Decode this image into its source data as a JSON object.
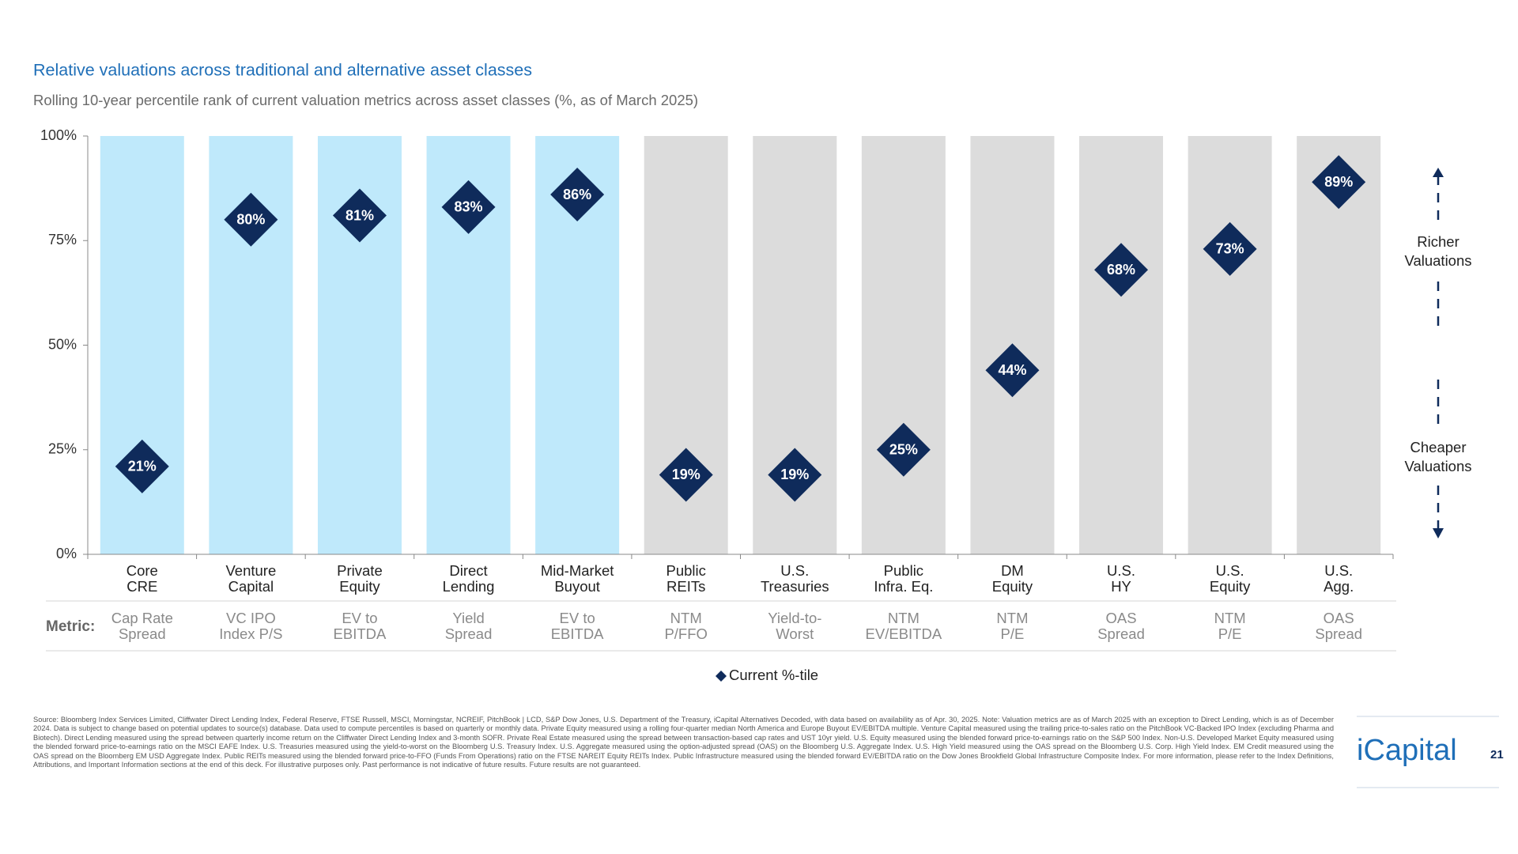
{
  "chart_data": {
    "type": "scatter",
    "title": "Relative valuations across traditional and alternative asset classes",
    "subtitle": "Rolling 10-year percentile rank of current valuation metrics across asset classes (%, as of March 2025)",
    "categories": [
      [
        "Core",
        "CRE"
      ],
      [
        "Venture",
        "Capital"
      ],
      [
        "Private",
        "Equity"
      ],
      [
        "Direct",
        "Lending"
      ],
      [
        "Mid-Market",
        "Buyout"
      ],
      [
        "Public",
        "REITs"
      ],
      [
        "U.S.",
        "Treasuries"
      ],
      [
        "Public",
        "Infra. Eq."
      ],
      [
        "DM",
        "Equity"
      ],
      [
        "U.S.",
        "HY"
      ],
      [
        "U.S.",
        "Equity"
      ],
      [
        "U.S.",
        "Agg."
      ]
    ],
    "category_colors": [
      "#bfe9fb",
      "#bfe9fb",
      "#bfe9fb",
      "#bfe9fb",
      "#bfe9fb",
      "#dcdcdc",
      "#dcdcdc",
      "#dcdcdc",
      "#dcdcdc",
      "#dcdcdc",
      "#dcdcdc",
      "#dcdcdc"
    ],
    "metric_label": "Metric:",
    "metrics": [
      [
        "Cap Rate",
        "Spread"
      ],
      [
        "VC IPO",
        "Index P/S"
      ],
      [
        "EV to",
        "EBITDA"
      ],
      [
        "Yield",
        "Spread"
      ],
      [
        "EV to",
        "EBITDA"
      ],
      [
        "NTM",
        "P/FFO"
      ],
      [
        "Yield-to-",
        "Worst"
      ],
      [
        "NTM",
        "EV/EBITDA"
      ],
      [
        "NTM",
        "P/E"
      ],
      [
        "OAS",
        "Spread"
      ],
      [
        "NTM",
        "P/E"
      ],
      [
        "OAS",
        "Spread"
      ]
    ],
    "series": [
      {
        "name": "Current %-tile",
        "color": "#0f2b5b",
        "values": [
          21,
          80,
          81,
          83,
          86,
          19,
          19,
          25,
          44,
          68,
          73,
          89
        ],
        "value_labels": [
          "21%",
          "80%",
          "81%",
          "83%",
          "86%",
          "19%",
          "19%",
          "25%",
          "44%",
          "68%",
          "73%",
          "89%"
        ]
      }
    ],
    "ylim": [
      0,
      100
    ],
    "yticks": [
      {
        "value": 0,
        "label": "0%"
      },
      {
        "value": 25,
        "label": "25%"
      },
      {
        "value": 50,
        "label": "50%"
      },
      {
        "value": 75,
        "label": "75%"
      },
      {
        "value": 100,
        "label": "100%"
      }
    ],
    "annotations": [
      [
        "Richer",
        "Valuations"
      ],
      [
        "Cheaper",
        "Valuations"
      ]
    ]
  },
  "footer": {
    "source": "Source: Bloomberg Index Services Limited, Cliffwater Direct Lending Index, Federal Reserve, FTSE Russell, MSCI, Morningstar, NCREIF, PitchBook | LCD, S&P Dow Jones, U.S. Department of the Treasury, iCapital Alternatives Decoded, with data based on availability as of Apr. 30, 2025. Note: Valuation metrics are as of March 2025 with an exception to Direct Lending, which is as of December 2024. Data is subject to change based on potential updates to source(s) database. Data used to compute percentiles is based on quarterly or monthly data. Private Equity measured using a rolling four-quarter median North America and Europe Buyout EV/EBITDA multiple. Venture Capital measured using the trailing price-to-sales ratio on the PitchBook VC-Backed IPO Index (excluding Pharma and Biotech). Direct Lending measured using the spread between quarterly income return on the Cliffwater Direct Lending Index and 3-month SOFR. Private Real Estate measured using the spread between transaction-based cap rates and UST 10yr yield. U.S. Equity measured using the blended forward price-to-earnings ratio on the S&P 500 Index. Non-U.S. Developed Market Equity measured using the blended forward price-to-earnings ratio on the MSCI EAFE Index. U.S. Treasuries measured using the yield-to-worst on the Bloomberg U.S. Treasury Index. U.S. Aggregate measured using the option-adjusted spread (OAS) on the Bloomberg U.S. Aggregate Index. U.S. High Yield measured using the OAS spread on the Bloomberg U.S. Corp. High Yield Index. EM Credit measured using the OAS spread on the Bloomberg EM USD Aggregate Index. Public REITs measured using the blended forward price-to-FFO (Funds From Operations) ratio on the FTSE NAREIT Equity REITs Index. Public Infrastructure measured using the blended forward EV/EBITDA ratio on the Dow Jones Brookfield Global Infrastructure Composite Index. For more information, please refer to the Index Definitions, Attributions, and Important Information sections at the end of this deck. For illustrative purposes only. Past performance is not indicative of future results. Future results are not guaranteed.",
    "logo": "iCapital",
    "page_number": "21"
  }
}
